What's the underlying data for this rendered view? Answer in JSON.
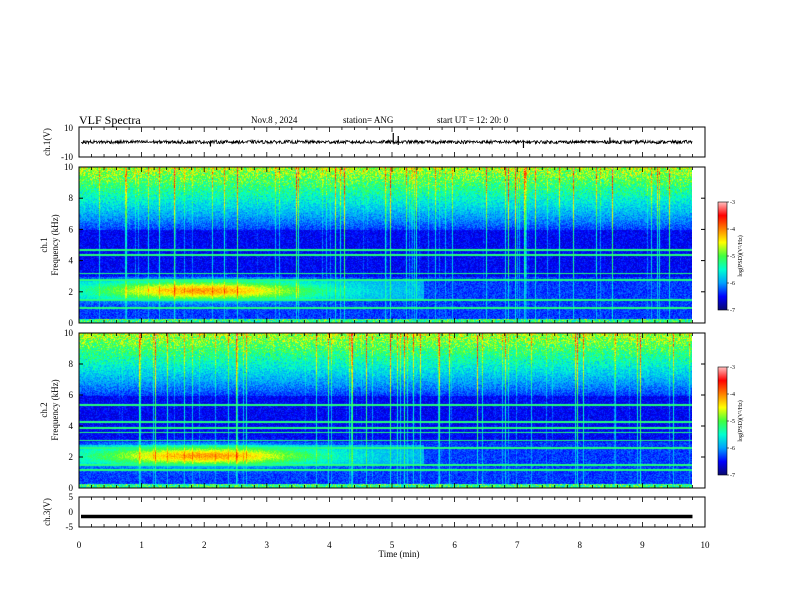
{
  "header": {
    "title": "VLF Spectra",
    "date": "Nov.8 , 2024",
    "station": "station= ANG",
    "start": "start UT = 12: 20: 0"
  },
  "chart_data": [
    {
      "type": "line",
      "panel": "ch1-waveform",
      "ylabel": "ch.1(V)",
      "ylim": [
        -10,
        10
      ],
      "yticks": [
        "10",
        "-10"
      ],
      "xlim": [
        0,
        10
      ],
      "series": [
        {
          "values_summary": "noise band near 0 V, spikes near t=5.0, 5.1, 7.1, 8.5 min",
          "baseline": 0
        }
      ]
    },
    {
      "type": "heatmap",
      "panel": "ch1-spectrogram",
      "ylabel": "ch.1\nFrequency (kHz)",
      "ylim": [
        0,
        10
      ],
      "yticks": [
        "0",
        "2",
        "4",
        "6",
        "8",
        "10"
      ],
      "xlim": [
        0,
        9.8
      ],
      "colorbar": {
        "label": "log(PSD)(V²/Hz)",
        "range": [
          -7,
          -3
        ],
        "ticks": [
          "-3",
          "-4",
          "-5",
          "-6",
          "-7"
        ]
      }
    },
    {
      "type": "heatmap",
      "panel": "ch2-spectrogram",
      "ylabel": "ch.2\nFrequency (kHz)",
      "ylim": [
        0,
        10
      ],
      "yticks": [
        "0",
        "2",
        "4",
        "6",
        "8",
        "10"
      ],
      "xlim": [
        0,
        9.8
      ],
      "colorbar": {
        "label": "log(PSD)(V²/Hz)",
        "range": [
          -7,
          -3
        ],
        "ticks": [
          "-3",
          "-4",
          "-5",
          "-6",
          "-7"
        ]
      }
    },
    {
      "type": "line",
      "panel": "ch3-waveform",
      "ylabel": "ch.3(V)",
      "ylim": [
        -5,
        5
      ],
      "yticks": [
        "5",
        "0",
        "-5"
      ],
      "xlim": [
        0,
        10
      ],
      "series": [
        {
          "values_summary": "flat at about -1.5 V",
          "baseline": -1.5
        }
      ]
    }
  ],
  "xaxis": {
    "label": "Time (min)",
    "ticks": [
      "0",
      "1",
      "2",
      "3",
      "4",
      "5",
      "6",
      "7",
      "8",
      "9",
      "10"
    ],
    "range": [
      0,
      10
    ]
  },
  "colors": {
    "spectrogram_scale": [
      "#0a0a6e",
      "#0000ff",
      "#00a0ff",
      "#00ffd0",
      "#40ff40",
      "#ffff00",
      "#ff8000",
      "#ff0000",
      "#ffc0c0"
    ]
  }
}
